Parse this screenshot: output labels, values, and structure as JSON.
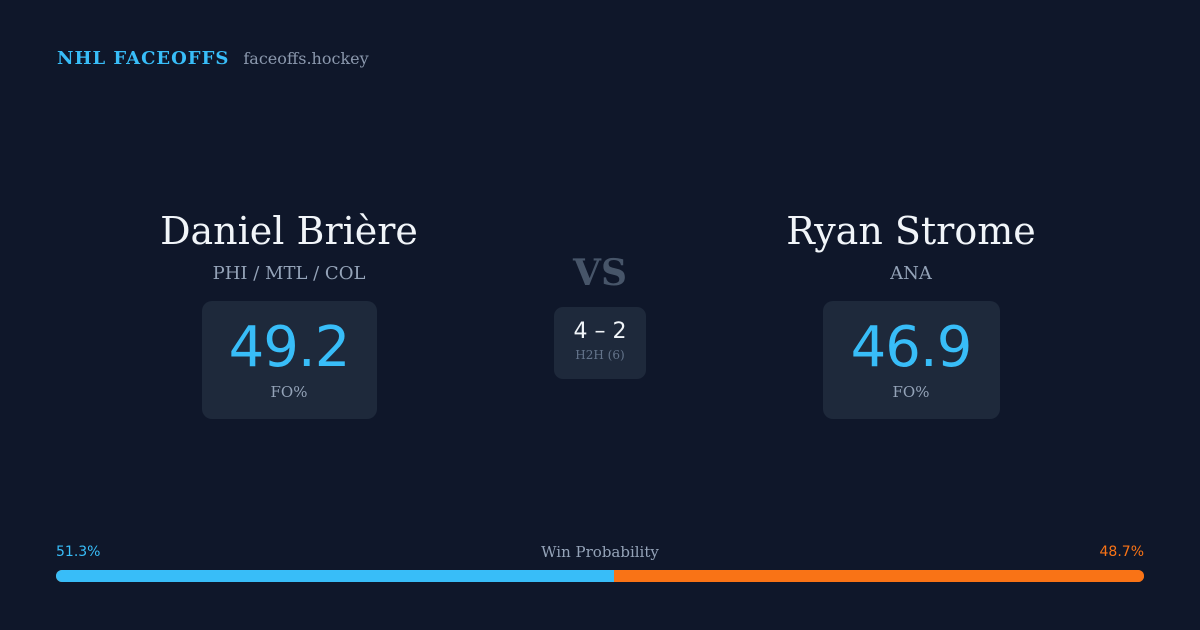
{
  "brand": {
    "name": "NHL FACEOFFS",
    "domain": "faceoffs.hockey"
  },
  "players": {
    "left": {
      "name": "Daniel Brière",
      "teams": "PHI / MTL / COL",
      "stat_value": "49.2",
      "stat_label": "FO%"
    },
    "right": {
      "name": "Ryan Strome",
      "teams": "ANA",
      "stat_value": "46.9",
      "stat_label": "FO%"
    }
  },
  "matchup": {
    "vs_label": "VS",
    "h2h_score": "4 – 2",
    "h2h_label": "H2H (6)"
  },
  "win_probability": {
    "title": "Win Probability",
    "left_label": "51.3%",
    "right_label": "48.7%",
    "left_fraction": 0.513,
    "right_fraction": 0.487
  },
  "colors": {
    "background": "#0f172a",
    "card": "#1e293b",
    "accent_blue": "#38bdf8",
    "accent_orange": "#f97316"
  }
}
